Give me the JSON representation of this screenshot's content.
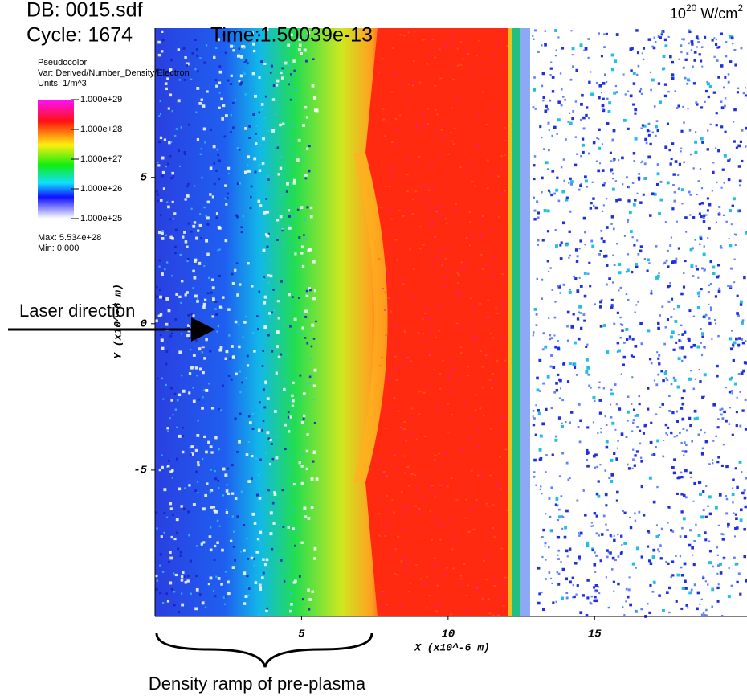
{
  "chart_data": {
    "type": "pseudocolor",
    "header": {
      "db": "DB: 0015.sdf",
      "cycle": "Cycle: 1674",
      "time": "Time:1.50039e-13"
    },
    "intensity": {
      "base": "10",
      "exp": "20",
      "unit": " W/cm",
      "unit_exp": "2"
    },
    "legend": {
      "title": "Pseudocolor",
      "var": "Var: Derived/Number_Density/Electron",
      "units": "Units: 1/m^3",
      "max": "Max: 5.534e+28",
      "min": "Min: 0.000",
      "log": true,
      "lim": [
        1e+25,
        1e+29
      ],
      "ticks": [
        {
          "value": 1e+29,
          "label": "1.000e+29"
        },
        {
          "value": 1e+28,
          "label": "1.000e+28"
        },
        {
          "value": 1e+27,
          "label": "1.000e+27"
        },
        {
          "value": 1e+26,
          "label": "1.000e+26"
        },
        {
          "value": 1e+25,
          "label": "1.000e+25"
        }
      ]
    },
    "xlabel": "X (x10^-6 m)",
    "ylabel": "Y (x10^-6 m)",
    "xlim": [
      0,
      20.2
    ],
    "ylim": [
      -10,
      10.1
    ],
    "xticks": [
      5,
      10,
      15
    ],
    "yticks": [
      5,
      0,
      -5
    ],
    "annotations": {
      "laser": "Laser direction",
      "ramp": "Density ramp of pre-plasma"
    }
  }
}
